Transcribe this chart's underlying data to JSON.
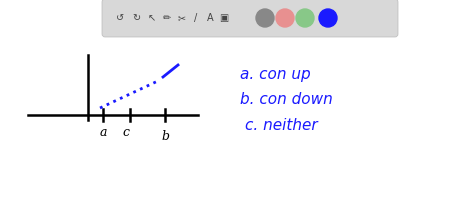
{
  "background_color": "#ffffff",
  "toolbar_bg": "#d8d8d8",
  "text_color": "#1a1aff",
  "axis_color": "#000000",
  "gray_circle_color": "#888888",
  "pink_circle_color": "#e89090",
  "green_circle_color": "#88c888",
  "blue_circle_color": "#1a1aff",
  "toolbar_icon_color": "#444444",
  "answer_a": "a. con up",
  "answer_b": "b. con down",
  "answer_c": "c. neither",
  "label_a": "a",
  "label_b": "b",
  "label_c": "c"
}
